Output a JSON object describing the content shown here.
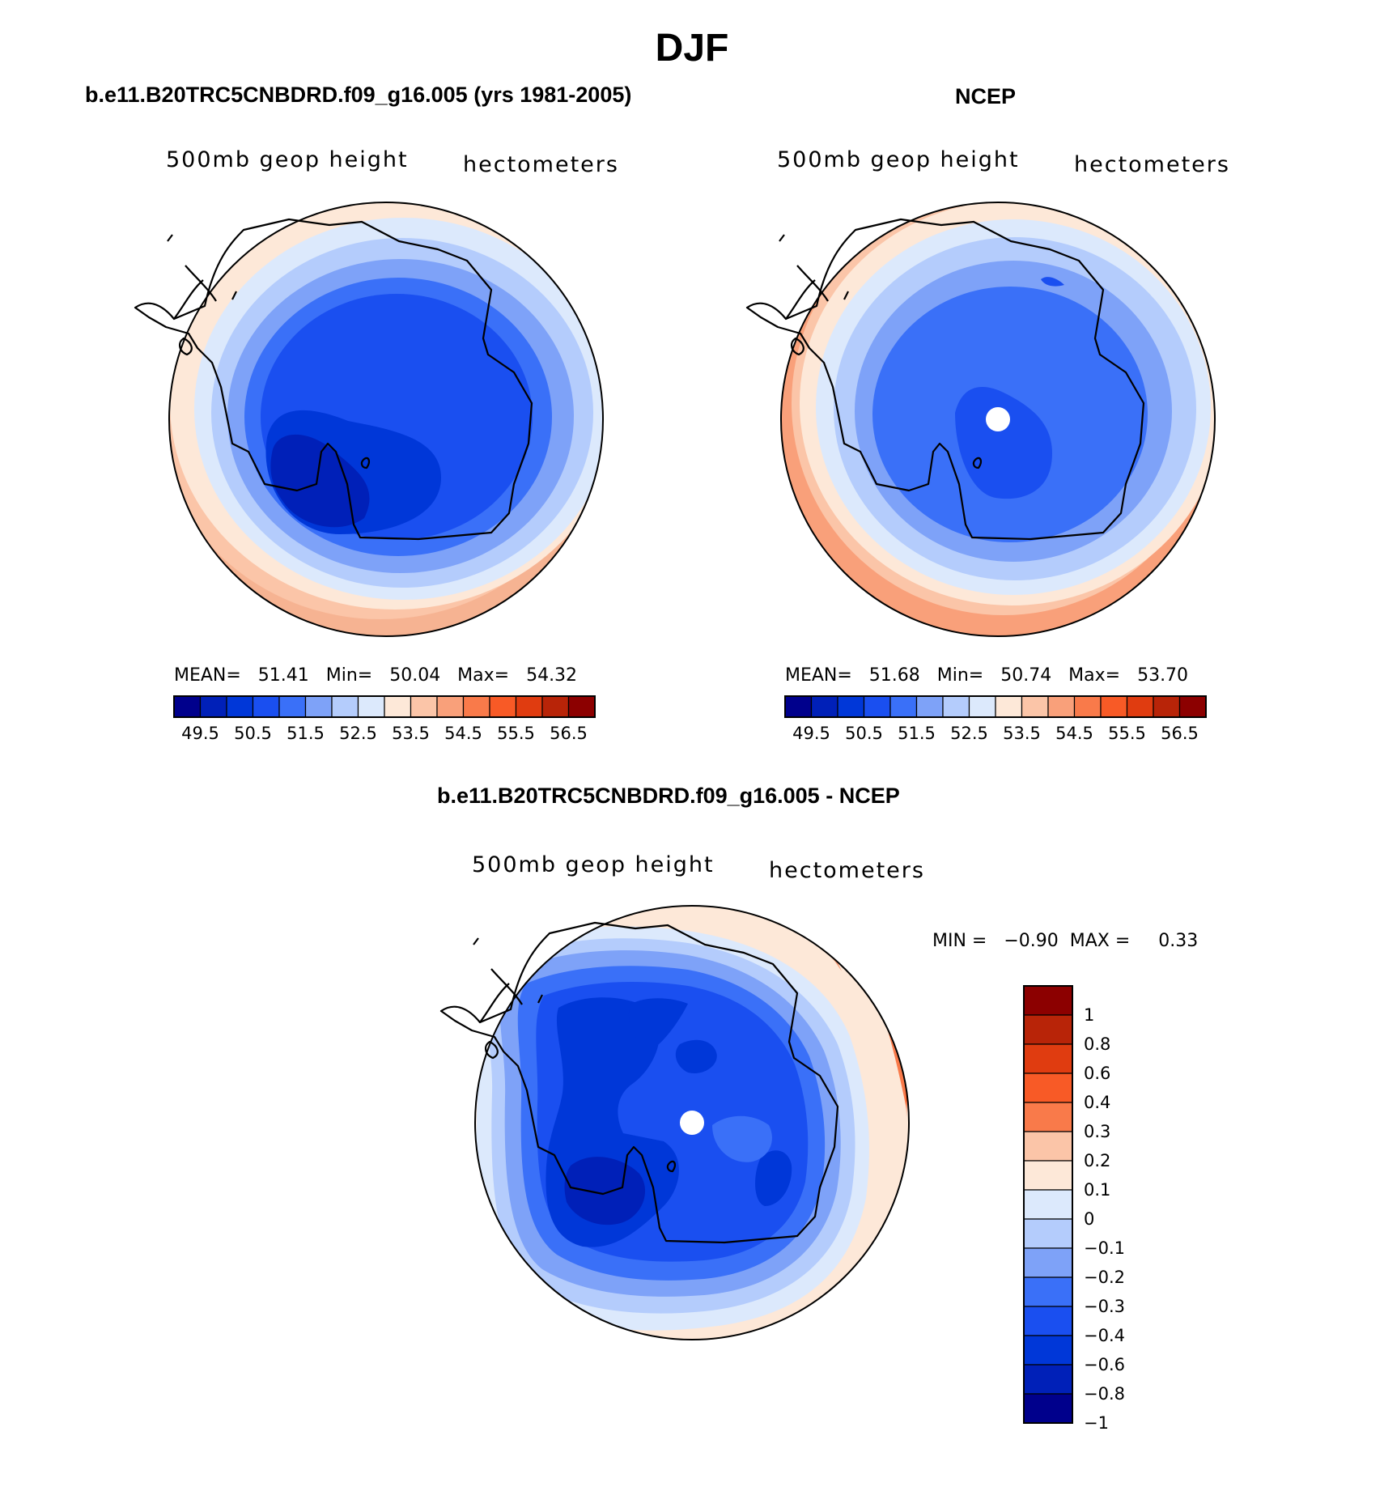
{
  "page_title": "DJF",
  "panels": [
    {
      "heading": "b.e11.B20TRC5CNBDRD.f09_g16.005 (yrs 1981-2005)",
      "variable": "500mb geop height",
      "units": "hectometers",
      "stats": "MEAN=   51.41   Min=   50.04   Max=   54.32",
      "colorbar_ticks": [
        "49.5",
        "50.5",
        "51.5",
        "52.5",
        "53.5",
        "54.5",
        "55.5",
        "56.5"
      ]
    },
    {
      "heading": "NCEP",
      "variable": "500mb geop height",
      "units": "hectometers",
      "stats": "MEAN=   51.68   Min=   50.74   Max=   53.70",
      "colorbar_ticks": [
        "49.5",
        "50.5",
        "51.5",
        "52.5",
        "53.5",
        "54.5",
        "55.5",
        "56.5"
      ]
    },
    {
      "heading": "b.e11.B20TRC5CNBDRD.f09_g16.005 - NCEP",
      "variable": "500mb geop height",
      "units": "hectometers",
      "stats": "MIN =   −0.90  MAX =     0.33",
      "colorbar_ticks": [
        "1",
        "0.8",
        "0.6",
        "0.4",
        "0.3",
        "0.2",
        "0.1",
        "0",
        "−0.1",
        "−0.2",
        "−0.3",
        "−0.4",
        "−0.6",
        "−0.8",
        "−1"
      ]
    }
  ],
  "palette": [
    "#00008c",
    "#0020b8",
    "#0037d8",
    "#1a4ff0",
    "#3a70f8",
    "#7ea2f8",
    "#b4ccfc",
    "#dce9fc",
    "#fde8d8",
    "#fbc5a8",
    "#f9a07a",
    "#f97a4a",
    "#f85a26",
    "#e03c10",
    "#b82408",
    "#8c0000"
  ],
  "diff_palette": [
    "#8c0000",
    "#b82408",
    "#e03c10",
    "#f85a26",
    "#f97a4a",
    "#fbc5a8",
    "#fde8d8",
    "#dce9fc",
    "#b4ccfc",
    "#7ea2f8",
    "#3a70f8",
    "#1a4ff0",
    "#0037d8",
    "#0020b8",
    "#00008c"
  ]
}
